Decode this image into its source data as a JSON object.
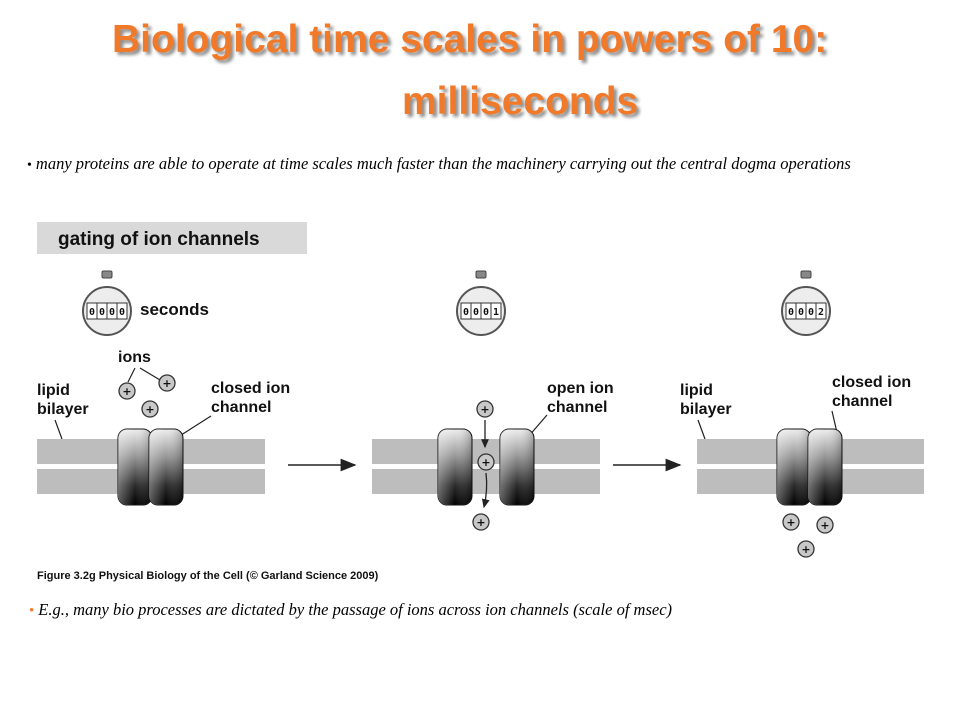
{
  "title": {
    "line1": "Biological time scales in powers of 10:",
    "line2": "milliseconds"
  },
  "bullets": [
    "many proteins are able to operate at time scales much faster than the machinery carrying out the central dogma operations",
    "E.g., many bio processes are dictated by the passage of ions across ion channels (scale of msec)"
  ],
  "figure": {
    "heading": "gating of ion channels",
    "timer_unit": "seconds",
    "timers": [
      {
        "digits": [
          "0",
          "0",
          "0",
          "0"
        ]
      },
      {
        "digits": [
          "0",
          "0",
          "0",
          "1"
        ]
      },
      {
        "digits": [
          "0",
          "0",
          "0",
          "2"
        ]
      }
    ],
    "labels": {
      "ions": "ions",
      "lipid_line1": "lipid",
      "lipid_line2": "bilayer",
      "closed_line1": "closed ion",
      "closed_line2": "channel",
      "open_line1": "open ion",
      "open_line2": "channel"
    },
    "ion_symbol": "+",
    "caption": "Figure 3.2g  Physical Biology of the Cell (© Garland Science 2009)"
  },
  "colors": {
    "title": "#f07a2a",
    "membrane": "#bdbdbd",
    "heading_bg": "#d9d9d9",
    "ion_fill": "#c8c8c8"
  }
}
